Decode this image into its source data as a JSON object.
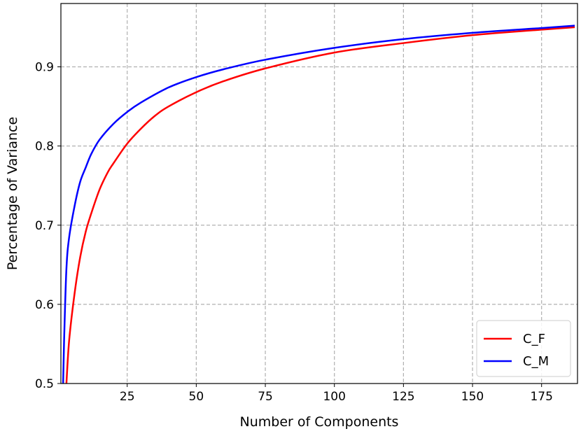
{
  "chart_data": {
    "type": "line",
    "title": "",
    "xlabel": "Number of Components",
    "ylabel": "Percentage of Variance",
    "xlim": [
      1,
      188
    ],
    "ylim": [
      0.5,
      0.98
    ],
    "xticks": [
      25,
      50,
      75,
      100,
      125,
      150,
      175
    ],
    "yticks": [
      0.5,
      0.6,
      0.7,
      0.8,
      0.9
    ],
    "ytick_labels": [
      "0.5",
      "0.6",
      "0.7",
      "0.8",
      "0.9"
    ],
    "grid": true,
    "legend_position": "bottom-right",
    "series": [
      {
        "name": "C_F",
        "color": "#ff0000",
        "x": [
          3,
          4,
          6,
          8,
          10,
          12,
          15,
          18,
          20,
          25,
          30,
          35,
          40,
          50,
          60,
          75,
          100,
          125,
          150,
          175,
          187
        ],
        "y": [
          0.5,
          0.555,
          0.615,
          0.66,
          0.692,
          0.715,
          0.745,
          0.767,
          0.778,
          0.803,
          0.822,
          0.838,
          0.85,
          0.868,
          0.882,
          0.898,
          0.918,
          0.93,
          0.94,
          0.947,
          0.95
        ]
      },
      {
        "name": "C_M",
        "color": "#0000ff",
        "x": [
          1.8,
          2.2,
          3,
          4,
          6,
          8,
          10,
          12,
          15,
          20,
          25,
          30,
          40,
          50,
          60,
          75,
          100,
          125,
          150,
          175,
          187
        ],
        "y": [
          0.5,
          0.56,
          0.645,
          0.685,
          0.725,
          0.755,
          0.773,
          0.79,
          0.808,
          0.828,
          0.843,
          0.855,
          0.874,
          0.887,
          0.897,
          0.909,
          0.924,
          0.935,
          0.943,
          0.949,
          0.952
        ]
      }
    ]
  }
}
